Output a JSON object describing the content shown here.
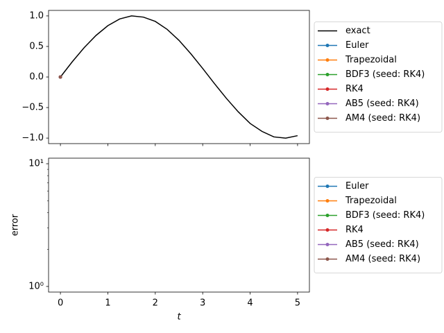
{
  "chart_data": [
    {
      "type": "line",
      "xlim": [
        -0.25,
        5.25
      ],
      "xticks": [
        0,
        1,
        2,
        3,
        4,
        5
      ],
      "xtick_labels": false,
      "ylim": [
        -1.09,
        1.09
      ],
      "yticks": [
        {
          "value": -1,
          "label": "−1.0"
        },
        {
          "value": -0.5,
          "label": "−0.5"
        },
        {
          "value": 0,
          "label": "0.0"
        },
        0.5,
        {
          "value": 1,
          "label": "1.0"
        }
      ],
      "legend": "right",
      "series": [
        {
          "name": "exact",
          "color": "#000000",
          "marker": false,
          "x": [
            0,
            0.25,
            0.5,
            0.75,
            1,
            1.25,
            1.5,
            1.75,
            2,
            2.25,
            2.5,
            2.75,
            3,
            3.25,
            3.5,
            3.75,
            4,
            4.25,
            4.5,
            4.75,
            5
          ],
          "values": [
            0,
            0.25,
            0.48,
            0.68,
            0.84,
            0.95,
            1.0,
            0.98,
            0.91,
            0.78,
            0.6,
            0.38,
            0.14,
            -0.11,
            -0.35,
            -0.57,
            -0.76,
            -0.89,
            -0.98,
            -1.0,
            -0.96
          ]
        },
        {
          "name": "Euler",
          "color": "#1f77b4",
          "marker": true,
          "x": [
            0
          ],
          "values": [
            0
          ]
        },
        {
          "name": "Trapezoidal",
          "color": "#ff7f0e",
          "marker": true,
          "x": [
            0
          ],
          "values": [
            0
          ]
        },
        {
          "name": "BDF3 (seed: RK4)",
          "color": "#2ca02c",
          "marker": true,
          "x": [
            0
          ],
          "values": [
            0
          ]
        },
        {
          "name": "RK4",
          "color": "#d62728",
          "marker": true,
          "x": [
            0
          ],
          "values": [
            0
          ]
        },
        {
          "name": "AB5 (seed: RK4)",
          "color": "#9467bd",
          "marker": true,
          "x": [
            0
          ],
          "values": [
            0
          ]
        },
        {
          "name": "AM4 (seed: RK4)",
          "color": "#8c564b",
          "marker": true,
          "x": [
            0
          ],
          "values": [
            0
          ]
        }
      ]
    },
    {
      "type": "line",
      "log_y": true,
      "x_label": "t",
      "y_label": "error",
      "xlim": [
        -0.25,
        5.25
      ],
      "xticks": [
        0,
        1,
        2,
        3,
        4,
        5
      ],
      "xtick_labels": true,
      "ylim": [
        0.9,
        11.1
      ],
      "yticks": [
        {
          "value": 1,
          "label": "10⁰"
        },
        {
          "value": 10,
          "label": "10¹"
        }
      ],
      "yminorticks": [
        2,
        3,
        4,
        5,
        6,
        7,
        8,
        9
      ],
      "legend": "right",
      "series": [
        {
          "name": "Euler",
          "color": "#1f77b4",
          "marker": true,
          "x": [
            0
          ],
          "values": [
            null
          ]
        },
        {
          "name": "Trapezoidal",
          "color": "#ff7f0e",
          "marker": true,
          "x": [
            0
          ],
          "values": [
            null
          ]
        },
        {
          "name": "BDF3 (seed: RK4)",
          "color": "#2ca02c",
          "marker": true,
          "x": [
            0
          ],
          "values": [
            null
          ]
        },
        {
          "name": "RK4",
          "color": "#d62728",
          "marker": true,
          "x": [
            0
          ],
          "values": [
            null
          ]
        },
        {
          "name": "AB5 (seed: RK4)",
          "color": "#9467bd",
          "marker": true,
          "x": [
            0
          ],
          "values": [
            null
          ]
        },
        {
          "name": "AM4 (seed: RK4)",
          "color": "#8c564b",
          "marker": true,
          "x": [
            0
          ],
          "values": [
            null
          ]
        }
      ]
    }
  ]
}
